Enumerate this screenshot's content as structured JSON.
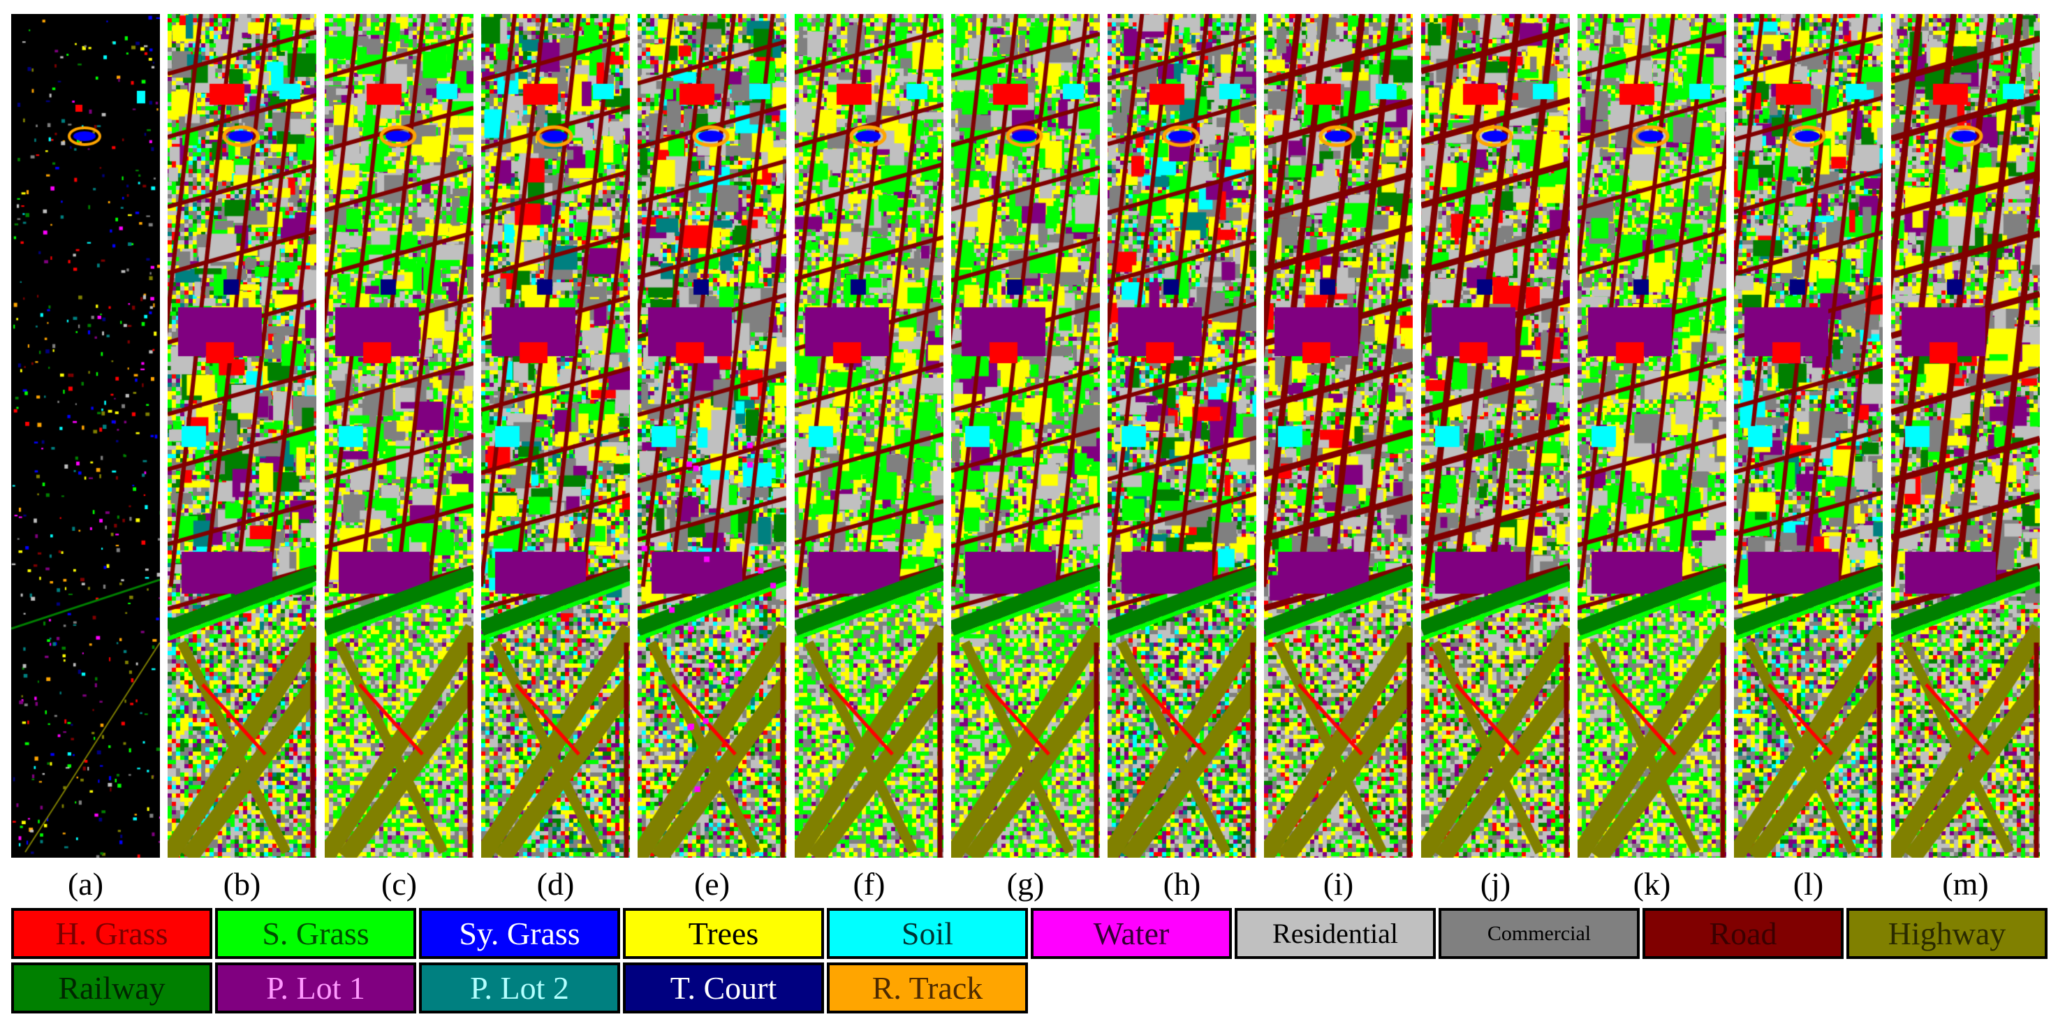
{
  "panels": [
    {
      "label": "(a)",
      "kind": "ground-truth"
    },
    {
      "label": "(b)",
      "kind": "classification"
    },
    {
      "label": "(c)",
      "kind": "classification"
    },
    {
      "label": "(d)",
      "kind": "classification"
    },
    {
      "label": "(e)",
      "kind": "classification"
    },
    {
      "label": "(f)",
      "kind": "classification"
    },
    {
      "label": "(g)",
      "kind": "classification"
    },
    {
      "label": "(h)",
      "kind": "classification"
    },
    {
      "label": "(i)",
      "kind": "classification"
    },
    {
      "label": "(j)",
      "kind": "classification"
    },
    {
      "label": "(k)",
      "kind": "classification"
    },
    {
      "label": "(l)",
      "kind": "classification"
    },
    {
      "label": "(m)",
      "kind": "classification"
    }
  ],
  "legend": [
    {
      "name": "H. Grass",
      "color": "#ff0000",
      "text_color": "#7a0000"
    },
    {
      "name": "S. Grass",
      "color": "#00ff00",
      "text_color": "#004d00"
    },
    {
      "name": "Sy. Grass",
      "color": "#0000ff",
      "text_color": "#ffffff"
    },
    {
      "name": "Trees",
      "color": "#ffff00",
      "text_color": "#000000"
    },
    {
      "name": "Soil",
      "color": "#00ffff",
      "text_color": "#003333"
    },
    {
      "name": "Water",
      "color": "#ff00ff",
      "text_color": "#330033"
    },
    {
      "name": "Residential",
      "color": "#c0c0c0",
      "text_color": "#000000"
    },
    {
      "name": "Commercial",
      "color": "#808080",
      "text_color": "#000000"
    },
    {
      "name": "Road",
      "color": "#800000",
      "text_color": "#3a0000"
    },
    {
      "name": "Highway",
      "color": "#808000",
      "text_color": "#2a2a00"
    },
    {
      "name": "Railway",
      "color": "#008000",
      "text_color": "#002600"
    },
    {
      "name": "P. Lot 1",
      "color": "#800080",
      "text_color": "#ff99ff"
    },
    {
      "name": "P. Lot 2",
      "color": "#008080",
      "text_color": "#b3ffff"
    },
    {
      "name": "T. Court",
      "color": "#000080",
      "text_color": "#ffffff"
    },
    {
      "name": "R. Track",
      "color": "#ffa500",
      "text_color": "#4d2a00"
    }
  ]
}
